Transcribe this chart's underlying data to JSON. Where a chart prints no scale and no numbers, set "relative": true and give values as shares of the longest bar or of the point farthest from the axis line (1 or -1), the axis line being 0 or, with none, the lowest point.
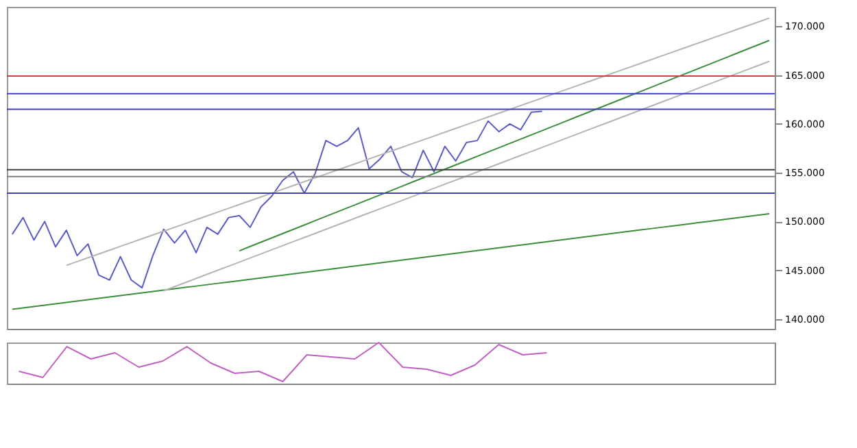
{
  "chart_data": [
    {
      "type": "line",
      "ylim": [
        139,
        172
      ],
      "yticks": [
        {
          "value": 140,
          "label": "140.000"
        },
        {
          "value": 145,
          "label": "145.000"
        },
        {
          "value": 150,
          "label": "150.000"
        },
        {
          "value": 155,
          "label": "155.000"
        },
        {
          "value": 160,
          "label": "160.000"
        },
        {
          "value": 165,
          "label": "165.000"
        },
        {
          "value": 170,
          "label": "170.000"
        }
      ],
      "tick_labels": "y",
      "categories": [
        null,
        null,
        null,
        null,
        null,
        null,
        null,
        null,
        null,
        null,
        null,
        null,
        null,
        null,
        null,
        null,
        null,
        null,
        null,
        null,
        null,
        null,
        null,
        null,
        null,
        null,
        null,
        null,
        null,
        null,
        null,
        null,
        null,
        null,
        null,
        null,
        null,
        null,
        null,
        null,
        null,
        null,
        null,
        null,
        null,
        null,
        null,
        null,
        null,
        null,
        null,
        null,
        null,
        null,
        null,
        null,
        null,
        null,
        null,
        null,
        null,
        null,
        null,
        null,
        null,
        null,
        null,
        null,
        null,
        null,
        null
      ],
      "series": [
        {
          "color": "#5a5ac8",
          "values": [
            148.7,
            150.4,
            148.1,
            150.0,
            147.4,
            149.1,
            146.5,
            147.7,
            144.5,
            144.0,
            146.4,
            144.0,
            143.2,
            146.5,
            149.2,
            147.8,
            149.1,
            146.8,
            149.4,
            148.7,
            150.4,
            150.6,
            149.4,
            151.5,
            152.6,
            154.2,
            155.1,
            152.9,
            154.9,
            158.3,
            157.7,
            158.3,
            159.6,
            155.4,
            156.4,
            157.7,
            155.1,
            154.5,
            157.3,
            155.1,
            157.7,
            156.2,
            158.1,
            158.3,
            160.3,
            159.2,
            160.0,
            159.4,
            161.2,
            161.3,
            null,
            null,
            null,
            null,
            null,
            null,
            null,
            null,
            null,
            null,
            null,
            null,
            null,
            null,
            null,
            null,
            null,
            null,
            null,
            null,
            null
          ]
        },
        {
          "color": "#3c8c3c",
          "values": [
            141.0,
            141.14,
            141.28,
            141.42,
            141.56,
            141.7,
            141.84,
            141.98,
            142.12,
            142.26,
            142.4,
            142.54,
            142.68,
            142.82,
            142.96,
            143.1,
            143.24,
            143.38,
            143.52,
            143.66,
            143.8,
            143.94,
            144.08,
            144.22,
            144.36,
            144.5,
            144.64,
            144.78,
            144.92,
            145.06,
            145.2,
            145.34,
            145.48,
            145.62,
            145.76,
            145.9,
            146.04,
            146.18,
            146.32,
            146.46,
            146.6,
            146.74,
            146.88,
            147.02,
            147.16,
            147.3,
            147.44,
            147.58,
            147.72,
            147.86,
            148.0,
            148.14,
            148.28,
            148.42,
            148.56,
            148.7,
            148.84,
            148.98,
            149.12,
            149.26,
            149.4,
            149.54,
            149.68,
            149.82,
            149.96,
            150.1,
            150.24,
            150.38,
            150.52,
            150.66,
            150.8
          ]
        },
        {
          "color": "#3c8c3c",
          "values": [
            null,
            null,
            null,
            null,
            null,
            null,
            null,
            null,
            null,
            null,
            null,
            null,
            null,
            null,
            null,
            null,
            null,
            null,
            null,
            null,
            null,
            147.0,
            147.44,
            147.88,
            148.32,
            148.76,
            149.2,
            149.64,
            150.08,
            150.52,
            150.96,
            151.4,
            151.84,
            152.28,
            152.72,
            153.16,
            153.6,
            154.04,
            154.48,
            154.92,
            155.36,
            155.8,
            156.24,
            156.68,
            157.12,
            157.56,
            158.0,
            158.44,
            158.88,
            159.32,
            159.76,
            160.2,
            160.64,
            161.08,
            161.52,
            161.96,
            162.4,
            162.84,
            163.28,
            163.72,
            164.16,
            164.6,
            165.04,
            165.48,
            165.92,
            166.36,
            166.8,
            167.24,
            167.68,
            168.12,
            168.56
          ]
        },
        {
          "color": "#b4b4b4",
          "values": [
            null,
            null,
            null,
            null,
            null,
            145.5,
            145.89,
            146.28,
            146.67,
            147.06,
            147.45,
            147.84,
            148.23,
            148.62,
            149.01,
            149.4,
            149.79,
            150.18,
            150.57,
            150.96,
            151.35,
            151.74,
            152.13,
            152.52,
            152.91,
            153.3,
            153.69,
            154.08,
            154.47,
            154.86,
            155.25,
            155.64,
            156.03,
            156.42,
            156.81,
            157.2,
            157.59,
            157.98,
            158.37,
            158.76,
            159.15,
            159.54,
            159.93,
            160.32,
            160.71,
            161.1,
            161.49,
            161.88,
            162.27,
            162.66,
            163.05,
            163.44,
            163.83,
            164.22,
            164.61,
            165.0,
            165.39,
            165.78,
            166.17,
            166.56,
            166.95,
            167.34,
            167.73,
            168.12,
            168.51,
            168.9,
            169.29,
            169.68,
            170.07,
            170.46,
            170.85
          ]
        },
        {
          "color": "#b4b4b4",
          "values": [
            null,
            null,
            null,
            null,
            null,
            null,
            null,
            null,
            null,
            null,
            null,
            null,
            null,
            null,
            142.9,
            143.32,
            143.74,
            144.16,
            144.58,
            145.0,
            145.42,
            145.84,
            146.26,
            146.68,
            147.1,
            147.52,
            147.94,
            148.36,
            148.78,
            149.2,
            149.62,
            150.04,
            150.46,
            150.88,
            151.3,
            151.72,
            152.14,
            152.56,
            152.98,
            153.4,
            153.82,
            154.24,
            154.66,
            155.08,
            155.5,
            155.92,
            156.34,
            156.76,
            157.18,
            157.6,
            158.02,
            158.44,
            158.86,
            159.28,
            159.7,
            160.12,
            160.54,
            160.96,
            161.38,
            161.8,
            162.22,
            162.64,
            163.06,
            163.48,
            163.9,
            164.32,
            164.74,
            165.16,
            165.58,
            166.0,
            166.42
          ]
        }
      ],
      "ref_lines": [
        {
          "axis": "y",
          "value": 164.9,
          "color": "#d04040"
        },
        {
          "axis": "y",
          "value": 163.1,
          "color": "#4040c0"
        },
        {
          "axis": "y",
          "value": 161.5,
          "color": "#4040c0"
        },
        {
          "axis": "y",
          "value": 155.3,
          "color": "#404040"
        },
        {
          "axis": "y",
          "value": 154.6,
          "color": "#808080"
        },
        {
          "axis": "y",
          "value": 152.9,
          "color": "#4040c0"
        }
      ]
    },
    {
      "type": "line",
      "relative": true,
      "tick_labels": false,
      "categories": [
        null,
        null,
        null,
        null,
        null,
        null,
        null,
        null,
        null,
        null,
        null,
        null,
        null,
        null,
        null,
        null,
        null,
        null,
        null,
        null,
        null,
        null,
        null,
        null,
        null,
        null,
        null,
        null,
        null,
        null,
        null,
        null
      ],
      "series": [
        {
          "color": "#c060c0",
          "values": [
            0.3,
            0.15,
            0.9,
            0.6,
            0.75,
            0.4,
            0.55,
            0.9,
            0.5,
            0.25,
            0.3,
            0.05,
            0.7,
            0.65,
            0.6,
            1.0,
            0.4,
            0.35,
            0.2,
            0.45,
            0.95,
            0.7,
            0.75,
            null,
            null,
            null,
            null,
            null,
            null,
            null,
            null,
            null
          ]
        }
      ]
    }
  ]
}
